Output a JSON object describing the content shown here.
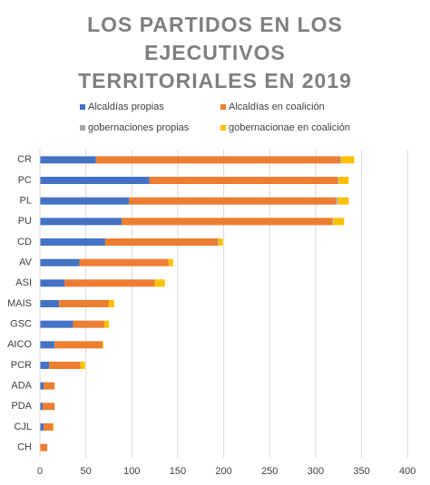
{
  "chart_data": {
    "type": "stacked-bar-horizontal",
    "title": "LOS PARTIDOS EN LOS EJECUTIVOS TERRITORIALES EN 2019",
    "categories": [
      "CR",
      "PC",
      "PL",
      "PU",
      "CD",
      "AV",
      "ASI",
      "MAIS",
      "GSC",
      "AICO",
      "PCR",
      "ADA",
      "PDA",
      "CJL",
      "CH"
    ],
    "series": [
      {
        "name": "Alcaldías propias",
        "color": "#4472c4",
        "values": [
          61,
          119,
          97,
          89,
          71,
          43,
          27,
          21,
          36,
          16,
          10,
          4,
          3,
          4,
          0
        ]
      },
      {
        "name": "Alcaldías en coalición",
        "color": "#ed7d31",
        "values": [
          266,
          205,
          225,
          229,
          122,
          97,
          98,
          54,
          34,
          52,
          34,
          12,
          13,
          10,
          8
        ]
      },
      {
        "name": "gobernaciones propias",
        "color": "#a5a5a5",
        "values": [
          1,
          1,
          2,
          1,
          1,
          0,
          0,
          0,
          0,
          0,
          0,
          0,
          0,
          0,
          0
        ]
      },
      {
        "name": "gobernacionae en coalición",
        "color": "#ffc000",
        "values": [
          14,
          11,
          12,
          12,
          5,
          5,
          11,
          6,
          5,
          1,
          5,
          0,
          0,
          1,
          0
        ]
      }
    ],
    "xlim": [
      0,
      420
    ],
    "xticks": [
      0,
      50,
      100,
      150,
      200,
      250,
      300,
      350,
      400
    ],
    "grid": true
  }
}
